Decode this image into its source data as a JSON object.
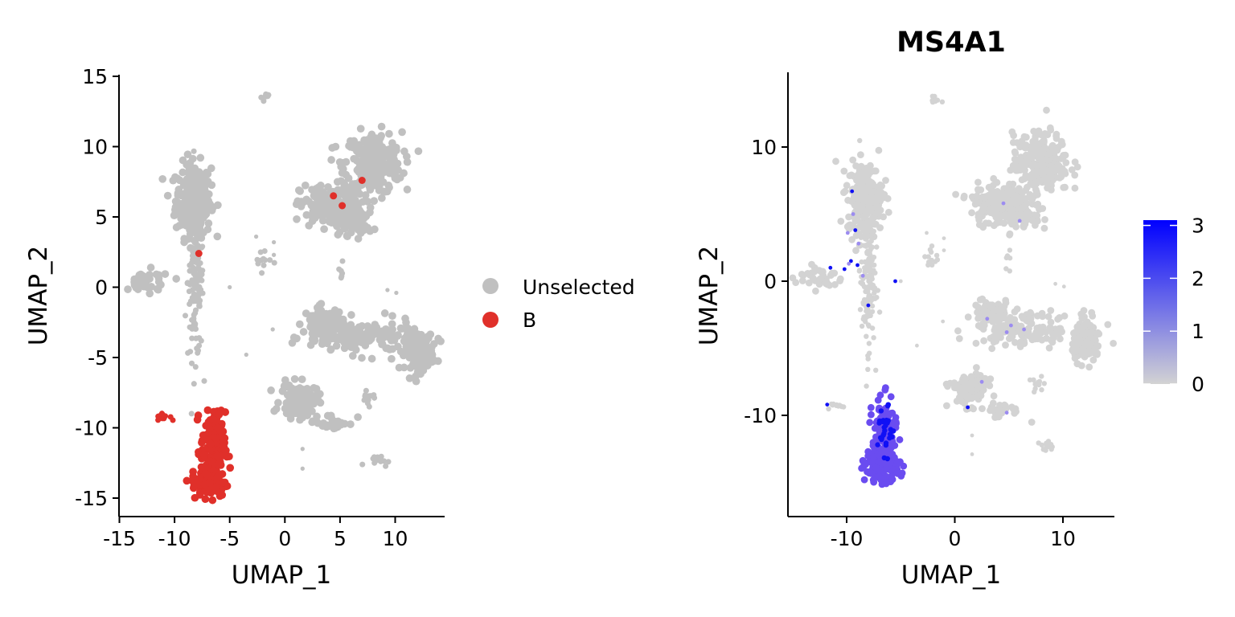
{
  "chart_data": [
    {
      "type": "scatter",
      "title": "",
      "xlabel": "UMAP_1",
      "ylabel": "UMAP_2",
      "xlim": [
        -15.5,
        14.5
      ],
      "ylim": [
        -16.5,
        15
      ],
      "xticks": [
        -15,
        -10,
        -5,
        0,
        5,
        10
      ],
      "yticks": [
        15,
        10,
        5,
        0,
        -5,
        -10,
        -15
      ],
      "xtick_labels": [
        "-15",
        "-10",
        "-5",
        "0",
        "5",
        "10"
      ],
      "ytick_labels": [
        "15",
        "10",
        "5",
        "0",
        "-5",
        "-10",
        "-15"
      ],
      "grid": false,
      "legend": {
        "placement": "right",
        "entries": [
          {
            "label": "Unselected",
            "color": "#c0c0c0"
          },
          {
            "label": "B",
            "color": "#e0302a"
          }
        ]
      },
      "series": [
        {
          "name": "Unselected",
          "color": "#c0c0c0",
          "clusters": [
            {
              "cx": -8.3,
              "cy": 6.2,
              "sx": 0.8,
              "sy": 1.3,
              "n": 260
            },
            {
              "cx": -8.1,
              "cy": 0.5,
              "sx": 0.35,
              "sy": 2.8,
              "n": 160
            },
            {
              "cx": -12.5,
              "cy": 0.3,
              "sx": 1.1,
              "sy": 0.45,
              "n": 40
            },
            {
              "cx": 8.0,
              "cy": 8.8,
              "sx": 1.3,
              "sy": 1.1,
              "n": 260
            },
            {
              "cx": 4.2,
              "cy": 5.8,
              "sx": 1.4,
              "sy": 0.75,
              "n": 200
            },
            {
              "cx": 6.2,
              "cy": 4.5,
              "sx": 0.9,
              "sy": 0.4,
              "n": 40
            },
            {
              "cx": 12.2,
              "cy": -4.5,
              "sx": 0.65,
              "sy": 0.7,
              "n": 140
            },
            {
              "cx": 3.5,
              "cy": -2.5,
              "sx": 0.9,
              "sy": 0.55,
              "n": 90
            },
            {
              "cx": 7.0,
              "cy": -3.6,
              "sx": 2.4,
              "sy": 0.6,
              "n": 140
            },
            {
              "cx": 1.3,
              "cy": -8.1,
              "sx": 0.85,
              "sy": 0.6,
              "n": 110
            },
            {
              "cx": 4.3,
              "cy": -9.6,
              "sx": 1.1,
              "sy": 0.3,
              "n": 25
            },
            {
              "cx": 7.6,
              "cy": -7.8,
              "sx": 0.4,
              "sy": 0.3,
              "n": 12
            },
            {
              "cx": 8.3,
              "cy": -12.3,
              "sx": 0.5,
              "sy": 0.2,
              "n": 12
            },
            {
              "cx": -1.8,
              "cy": 13.5,
              "sx": 0.15,
              "sy": 0.15,
              "n": 10
            },
            {
              "cx": -2.1,
              "cy": 1.9,
              "sx": 0.4,
              "sy": 0.6,
              "n": 12
            },
            {
              "cx": 5.0,
              "cy": 1.2,
              "sx": 0.2,
              "sy": 0.5,
              "n": 6
            }
          ],
          "points": [
            [
              -1.0,
              3.2
            ],
            [
              -2.6,
              3.6
            ],
            [
              -5.0,
              0.0
            ],
            [
              -3.5,
              -4.8
            ],
            [
              -1.1,
              -3.0
            ],
            [
              1.6,
              -11.5
            ],
            [
              1.6,
              -12.9
            ],
            [
              10.1,
              -0.4
            ],
            [
              9.3,
              -0.2
            ],
            [
              -1.0,
              2.3
            ]
          ]
        },
        {
          "name": "B",
          "color": "#e0302a",
          "clusters": [
            {
              "cx": -6.5,
              "cy": -11.5,
              "sx": 0.55,
              "sy": 1.3,
              "n": 150
            },
            {
              "cx": -6.8,
              "cy": -14.0,
              "sx": 0.8,
              "sy": 0.45,
              "n": 110
            },
            {
              "cx": -11.0,
              "cy": -9.2,
              "sx": 0.3,
              "sy": 0.12,
              "n": 16
            }
          ],
          "points": [
            [
              4.4,
              6.5
            ],
            [
              5.2,
              5.8
            ],
            [
              7.0,
              7.6
            ],
            [
              -7.8,
              2.4
            ]
          ]
        }
      ]
    },
    {
      "type": "scatter",
      "title": "MS4A1",
      "xlabel": "UMAP_1",
      "ylabel": "UMAP_2",
      "xlim": [
        -17,
        15
      ],
      "ylim": [
        -17.5,
        15.5
      ],
      "xticks": [
        -10,
        0,
        10
      ],
      "yticks": [
        10,
        0,
        -10
      ],
      "xtick_labels": [
        "-10",
        "0",
        "10"
      ],
      "ytick_labels": [
        "10",
        "0",
        "-10"
      ],
      "grid": false,
      "colorbar": {
        "placement": "right",
        "min": 0,
        "max": 3.1,
        "ticks": [
          0,
          1,
          2,
          3
        ],
        "tick_labels": [
          "0",
          "1",
          "2",
          "3"
        ],
        "low_color": "#d3d3d3",
        "high_color": "#0000ff"
      },
      "series": [
        {
          "name": "",
          "color": "#d3d3d3",
          "value": 0,
          "clusters": [
            {
              "cx": -8.3,
              "cy": 6.2,
              "sx": 0.8,
              "sy": 1.3,
              "n": 260
            },
            {
              "cx": -8.1,
              "cy": 0.5,
              "sx": 0.35,
              "sy": 2.8,
              "n": 160
            },
            {
              "cx": -12.5,
              "cy": 0.3,
              "sx": 1.1,
              "sy": 0.45,
              "n": 40
            },
            {
              "cx": 8.0,
              "cy": 8.8,
              "sx": 1.3,
              "sy": 1.1,
              "n": 260
            },
            {
              "cx": 4.2,
              "cy": 5.8,
              "sx": 1.4,
              "sy": 0.75,
              "n": 200
            },
            {
              "cx": 6.2,
              "cy": 4.5,
              "sx": 0.9,
              "sy": 0.4,
              "n": 40
            },
            {
              "cx": 12.2,
              "cy": -4.5,
              "sx": 0.65,
              "sy": 0.7,
              "n": 140
            },
            {
              "cx": 3.5,
              "cy": -2.5,
              "sx": 0.9,
              "sy": 0.55,
              "n": 90
            },
            {
              "cx": 7.0,
              "cy": -3.6,
              "sx": 2.4,
              "sy": 0.6,
              "n": 140
            },
            {
              "cx": 1.3,
              "cy": -8.1,
              "sx": 0.85,
              "sy": 0.6,
              "n": 110
            },
            {
              "cx": 4.3,
              "cy": -9.6,
              "sx": 1.1,
              "sy": 0.3,
              "n": 25
            },
            {
              "cx": 7.6,
              "cy": -7.8,
              "sx": 0.4,
              "sy": 0.3,
              "n": 12
            },
            {
              "cx": 8.3,
              "cy": -12.3,
              "sx": 0.5,
              "sy": 0.2,
              "n": 12
            },
            {
              "cx": -1.8,
              "cy": 13.5,
              "sx": 0.15,
              "sy": 0.15,
              "n": 10
            },
            {
              "cx": -2.1,
              "cy": 1.9,
              "sx": 0.4,
              "sy": 0.6,
              "n": 12
            },
            {
              "cx": -11.0,
              "cy": -9.2,
              "sx": 0.3,
              "sy": 0.12,
              "n": 12
            },
            {
              "cx": 5.0,
              "cy": 1.2,
              "sx": 0.2,
              "sy": 0.5,
              "n": 6
            }
          ],
          "points": [
            [
              -1.0,
              3.2
            ],
            [
              -2.6,
              3.6
            ],
            [
              -5.0,
              0.0
            ],
            [
              -3.5,
              -4.8
            ],
            [
              -1.1,
              -3.0
            ],
            [
              1.6,
              -11.5
            ],
            [
              1.6,
              -12.9
            ],
            [
              10.1,
              -0.4
            ],
            [
              9.3,
              -0.2
            ],
            [
              -1.0,
              2.3
            ]
          ]
        },
        {
          "name": "",
          "color": "#6a4cf0",
          "value": 2.0,
          "clusters": [
            {
              "cx": -6.5,
              "cy": -11.5,
              "sx": 0.55,
              "sy": 1.3,
              "n": 150
            },
            {
              "cx": -6.8,
              "cy": -14.0,
              "sx": 0.8,
              "sy": 0.45,
              "n": 110
            }
          ],
          "points": []
        },
        {
          "name": "",
          "color": "#1010f5",
          "value": 3.0,
          "clusters": [
            {
              "cx": -6.4,
              "cy": -11.2,
              "sx": 0.35,
              "sy": 0.9,
              "n": 30
            }
          ],
          "points": [
            [
              -9.5,
              6.7
            ],
            [
              -9.2,
              3.8
            ],
            [
              -9.6,
              1.5
            ],
            [
              -9.0,
              1.2
            ],
            [
              -11.5,
              1.0
            ],
            [
              -10.2,
              0.9
            ],
            [
              -5.5,
              0.0
            ],
            [
              -8.0,
              -1.8
            ],
            [
              -11.8,
              -9.2
            ],
            [
              1.2,
              -9.4
            ]
          ]
        },
        {
          "name": "",
          "color": "#9c8cf0",
          "value": 1.0,
          "clusters": [],
          "points": [
            [
              -9.4,
              5.0
            ],
            [
              -9.9,
              3.6
            ],
            [
              -8.9,
              2.8
            ],
            [
              6.0,
              4.5
            ],
            [
              4.5,
              5.8
            ],
            [
              5.2,
              -3.3
            ],
            [
              6.4,
              -3.6
            ],
            [
              4.8,
              -3.8
            ],
            [
              2.5,
              -7.5
            ],
            [
              -9.8,
              1.3
            ],
            [
              -8.5,
              0.4
            ],
            [
              4.8,
              -9.8
            ],
            [
              3.0,
              -2.8
            ]
          ]
        }
      ]
    }
  ]
}
